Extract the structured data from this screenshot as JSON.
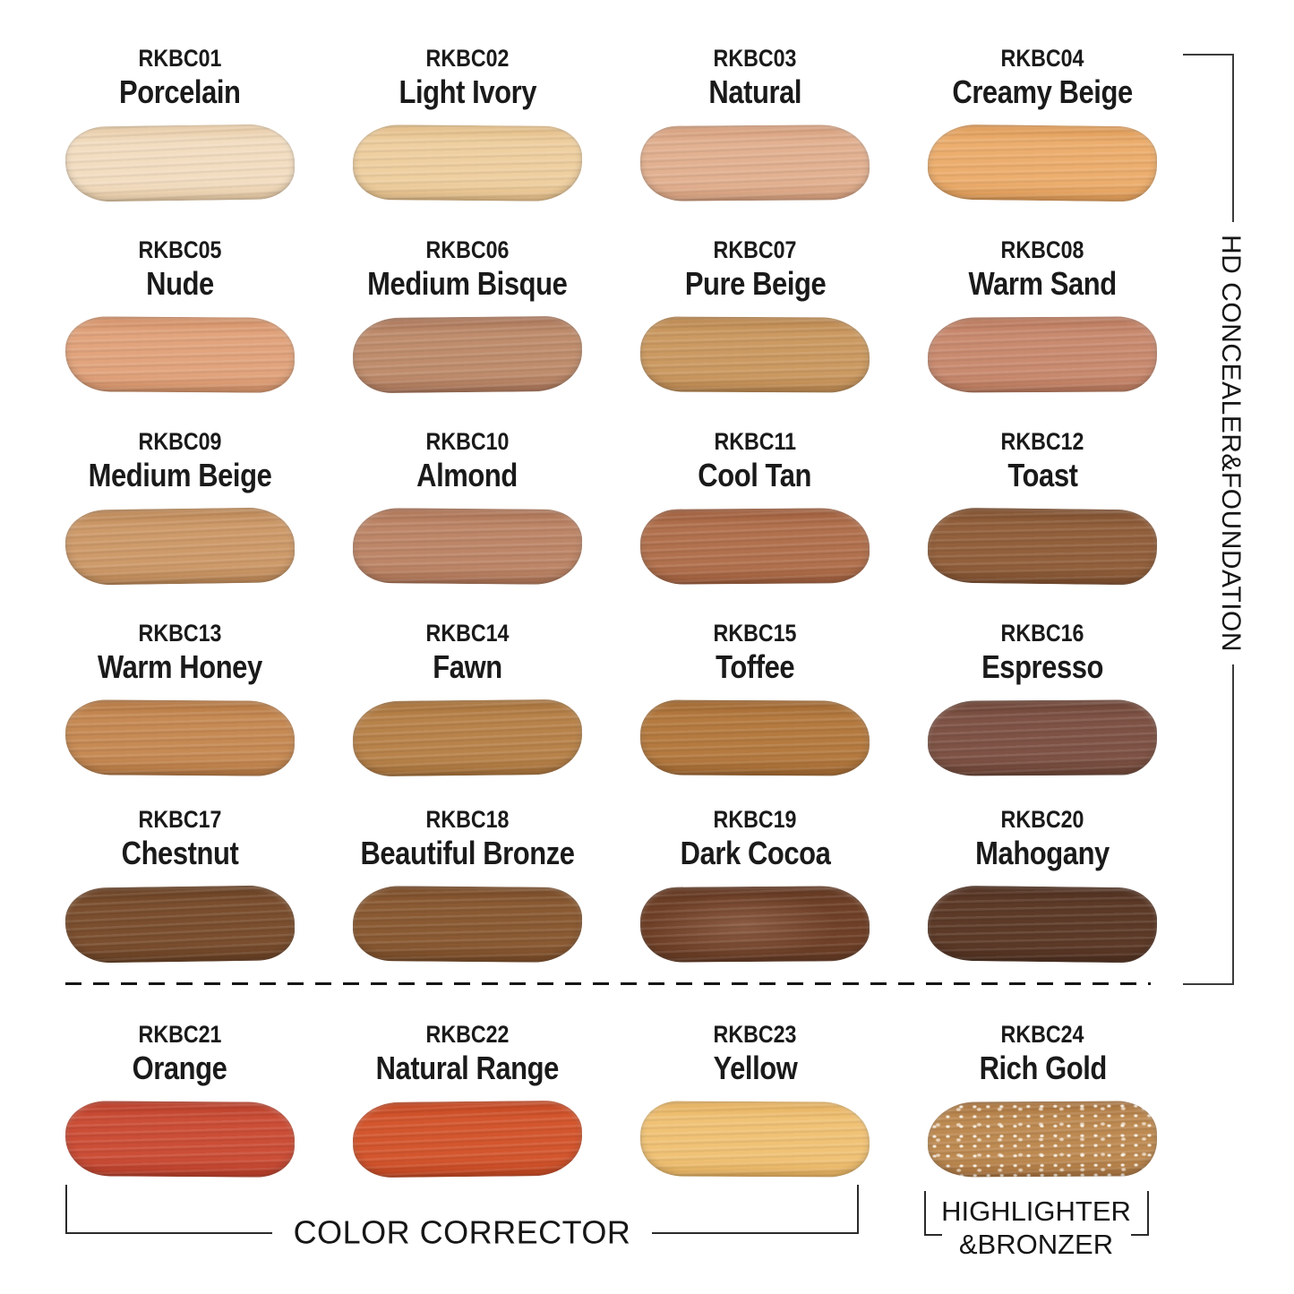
{
  "side_label": "HD CONCEALER&FOUNDATION",
  "bottom_labels": {
    "color_corrector": "COLOR CORRECTOR",
    "highlighter_line1": "HIGHLIGHTER",
    "highlighter_line2": "&BRONZER"
  },
  "colors": {
    "ink": "#161616",
    "bracket_line": "#3c3c3c",
    "background": "#ffffff"
  },
  "swatches": [
    {
      "code": "RKBC01",
      "name": "Porcelain",
      "color": "#f2ddc1",
      "color2": "#e6c9a3"
    },
    {
      "code": "RKBC02",
      "name": "Light Ivory",
      "color": "#eecfa0",
      "color2": "#e2bb85"
    },
    {
      "code": "RKBC03",
      "name": "Natural",
      "color": "#e2b191",
      "color2": "#d49d7b"
    },
    {
      "code": "RKBC04",
      "name": "Creamy Beige",
      "color": "#ecae6e",
      "color2": "#dd9955"
    },
    {
      "code": "RKBC05",
      "name": "Nude",
      "color": "#e1a47d",
      "color2": "#d18f66"
    },
    {
      "code": "RKBC06",
      "name": "Medium Bisque",
      "color": "#bf8d6d",
      "color2": "#a97458"
    },
    {
      "code": "RKBC07",
      "name": "Pure Beige",
      "color": "#cb9a62",
      "color2": "#b9854d"
    },
    {
      "code": "RKBC08",
      "name": "Warm Sand",
      "color": "#c98b70",
      "color2": "#b7765a"
    },
    {
      "code": "RKBC09",
      "name": "Medium Beige",
      "color": "#cd9a6a",
      "color2": "#ba8554"
    },
    {
      "code": "RKBC10",
      "name": "Almond",
      "color": "#bd8668",
      "color2": "#aa7153"
    },
    {
      "code": "RKBC11",
      "name": "Cool Tan",
      "color": "#b1714e",
      "color2": "#9c5b3a"
    },
    {
      "code": "RKBC12",
      "name": "Toast",
      "color": "#92603c",
      "color2": "#7c4d2d"
    },
    {
      "code": "RKBC13",
      "name": "Warm Honey",
      "color": "#c68a54",
      "color2": "#b27540"
    },
    {
      "code": "RKBC14",
      "name": "Fawn",
      "color": "#b8834b",
      "color2": "#a46f38"
    },
    {
      "code": "RKBC15",
      "name": "Toffee",
      "color": "#b47a40",
      "color2": "#9e652f"
    },
    {
      "code": "RKBC16",
      "name": "Espresso",
      "color": "#7e5345",
      "color2": "#6a4234"
    },
    {
      "code": "RKBC17",
      "name": "Chestnut",
      "color": "#7a4e2e",
      "color2": "#663e22"
    },
    {
      "code": "RKBC18",
      "name": "Beautiful Bronze",
      "color": "#8a5a33",
      "color2": "#764926"
    },
    {
      "code": "RKBC19",
      "name": "Dark Cocoa",
      "color": "#6f4027",
      "color2": "#8a5b42",
      "variant": "center-light"
    },
    {
      "code": "RKBC20",
      "name": "Mahogany",
      "color": "#5d3a28",
      "color2": "#4d2e1e"
    },
    {
      "code": "RKBC21",
      "name": "Orange",
      "color": "#cb4e37",
      "color2": "#b63c27"
    },
    {
      "code": "RKBC22",
      "name": "Natural Range",
      "color": "#d3562e",
      "color2": "#c04520"
    },
    {
      "code": "RKBC23",
      "name": "Yellow",
      "color": "#f0c276",
      "color2": "#e3ae5c"
    },
    {
      "code": "RKBC24",
      "name": "Rich Gold",
      "color": "#bd8a52",
      "color2": "#a6713d",
      "variant": "sparkle"
    }
  ]
}
